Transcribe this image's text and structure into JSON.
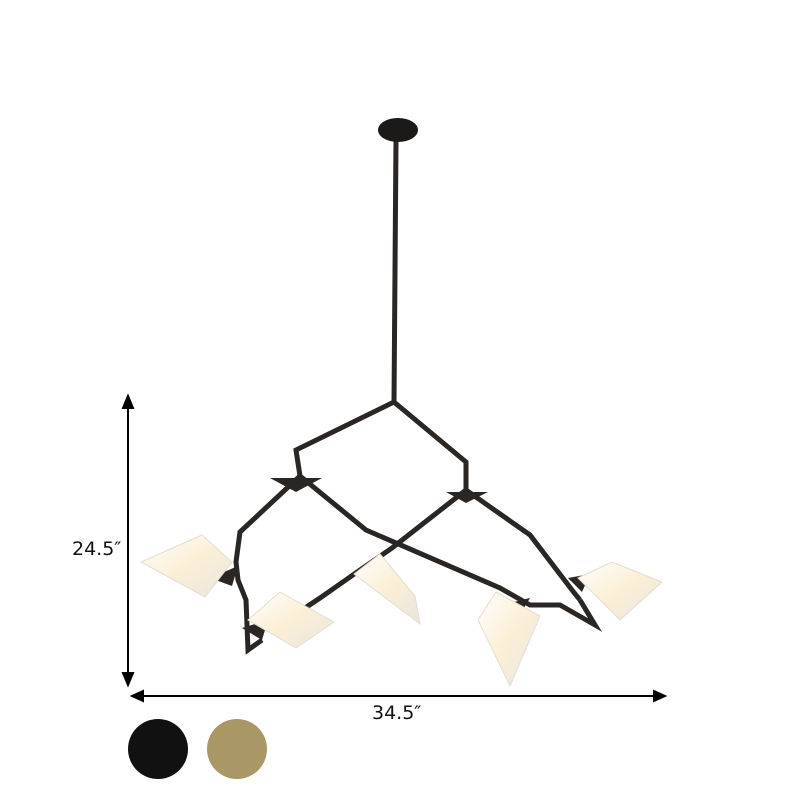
{
  "dimensions": {
    "height": "24.5″",
    "width": "34.5″"
  },
  "finish_options": [
    {
      "name": "black",
      "color": "#111111"
    },
    {
      "name": "gold",
      "color": "#a99766"
    }
  ],
  "product": {
    "colors": {
      "frame": "#2a2624",
      "shade": "#f6f0e2"
    }
  }
}
